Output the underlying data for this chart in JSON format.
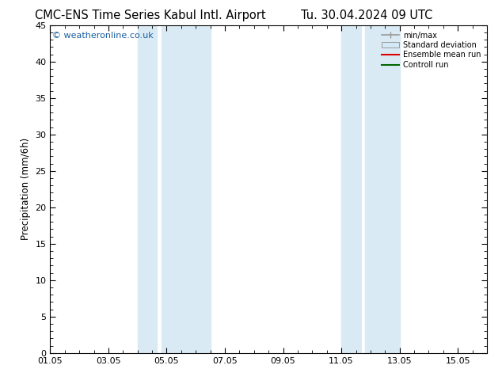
{
  "title_left": "CMC-ENS Time Series Kabul Intl. Airport",
  "title_right": "Tu. 30.04.2024 09 UTC",
  "ylabel": "Precipitation (mm/6h)",
  "ylim": [
    0,
    45
  ],
  "yticks": [
    0,
    5,
    10,
    15,
    20,
    25,
    30,
    35,
    40,
    45
  ],
  "xlim": [
    0,
    15
  ],
  "xtick_labels": [
    "01.05",
    "03.05",
    "05.05",
    "07.05",
    "09.05",
    "11.05",
    "13.05",
    "15.05"
  ],
  "xtick_positions_days": [
    0,
    2,
    4,
    6,
    8,
    10,
    12,
    14
  ],
  "band1_start": 3.0,
  "band1_mid": 3.667,
  "band1_end": 5.5,
  "band2_start": 10.0,
  "band2_mid": 10.667,
  "band2_end": 12.0,
  "band_color": "#daeaf5",
  "background_color": "#ffffff",
  "plot_bg_color": "#ffffff",
  "legend_labels": [
    "min/max",
    "Standard deviation",
    "Ensemble mean run",
    "Controll run"
  ],
  "watermark": "© weatheronline.co.uk",
  "watermark_color": "#1a5fa0",
  "title_fontsize": 10.5,
  "tick_fontsize": 8,
  "ylabel_fontsize": 8.5
}
